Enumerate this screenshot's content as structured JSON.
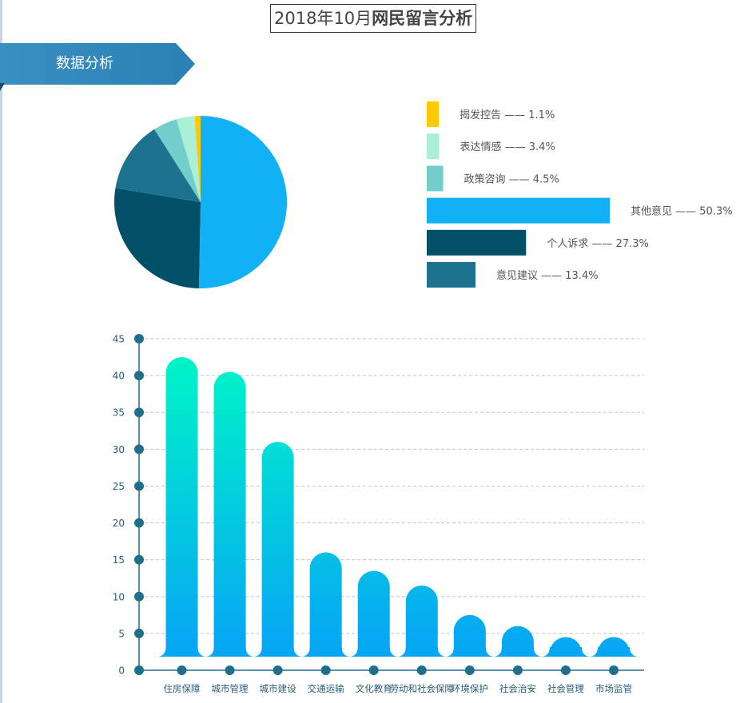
{
  "page": {
    "title_prefix": "2018年10月",
    "title_main": "网民留言分析"
  },
  "section": {
    "label": "数据分析"
  },
  "colors": {
    "banner": "#2b86b8",
    "axis": "#1f6f8b",
    "gradient_top": "#00f5c8",
    "gradient_bottom": "#06a4f5"
  },
  "chart_data": [
    {
      "type": "pie",
      "slices": [
        {
          "label": "其他意见",
          "value": 50.3,
          "color": "#12b0f5"
        },
        {
          "label": "个人诉求",
          "value": 27.3,
          "color": "#024f68"
        },
        {
          "label": "意见建议",
          "value": 13.4,
          "color": "#1c7390"
        },
        {
          "label": "政策咨询",
          "value": 4.5,
          "color": "#72cecb"
        },
        {
          "label": "表达情感",
          "value": 3.4,
          "color": "#aaf0d6"
        },
        {
          "label": "揭发控告",
          "value": 1.1,
          "color": "#ffc900"
        }
      ]
    },
    {
      "type": "bar",
      "orientation": "horizontal",
      "bars": [
        {
          "label": "揭发控告",
          "value": 1.1,
          "text": "揭发控告 —— 1.1%",
          "color": "#ffc900"
        },
        {
          "label": "表达情感",
          "value": 3.4,
          "text": "表达情感 —— 3.4%",
          "color": "#aaf0d6"
        },
        {
          "label": "政策咨询",
          "value": 4.5,
          "text": "政策咨询 —— 4.5%",
          "color": "#72cecb"
        },
        {
          "label": "其他意见",
          "value": 50.3,
          "text": "其他意见 —— 50.3%",
          "color": "#12b0f5"
        },
        {
          "label": "个人诉求",
          "value": 27.3,
          "text": "个人诉求 —— 27.3%",
          "color": "#024f68"
        },
        {
          "label": "意见建议",
          "value": 13.4,
          "text": "意见建议 —— 13.4%",
          "color": "#1c7390"
        }
      ]
    },
    {
      "type": "bar",
      "categories": [
        "住房保障",
        "城市管理",
        "城市建设",
        "交通运输",
        "文化教育",
        "劳动和社会保障",
        "环境保护",
        "社会治安",
        "社会管理",
        "市场监管"
      ],
      "values": [
        42.5,
        40.5,
        31,
        16,
        13.5,
        11.5,
        7.5,
        6,
        4.5,
        4.5
      ],
      "yticks": [
        "0",
        "5",
        "10",
        "15",
        "20",
        "25",
        "30",
        "35",
        "40",
        "45"
      ],
      "ylim": [
        0,
        45
      ],
      "grid": true
    }
  ]
}
